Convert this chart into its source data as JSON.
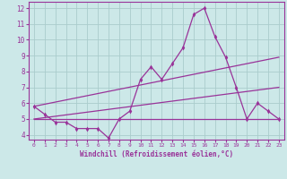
{
  "bg_color": "#cce8e8",
  "grid_color": "#aacccc",
  "line_color": "#993399",
  "xlabel": "Windchill (Refroidissement éolien,°C)",
  "xlim": [
    -0.5,
    23.5
  ],
  "ylim": [
    3.7,
    12.4
  ],
  "xticks": [
    0,
    1,
    2,
    3,
    4,
    5,
    6,
    7,
    8,
    9,
    10,
    11,
    12,
    13,
    14,
    15,
    16,
    17,
    18,
    19,
    20,
    21,
    22,
    23
  ],
  "yticks": [
    4,
    5,
    6,
    7,
    8,
    9,
    10,
    11,
    12
  ],
  "main_x": [
    0,
    1,
    2,
    3,
    4,
    5,
    6,
    7,
    8,
    9,
    10,
    11,
    12,
    13,
    14,
    15,
    16,
    17,
    18,
    19,
    20,
    21,
    22,
    23
  ],
  "main_y": [
    5.8,
    5.3,
    4.8,
    4.8,
    4.4,
    4.4,
    4.4,
    3.8,
    5.0,
    5.5,
    7.5,
    8.3,
    7.5,
    8.5,
    9.5,
    11.6,
    12.0,
    10.2,
    8.9,
    7.0,
    5.0,
    6.0,
    5.5,
    5.0
  ],
  "trend1_x": [
    0,
    23
  ],
  "trend1_y": [
    5.8,
    8.9
  ],
  "trend2_x": [
    0,
    23
  ],
  "trend2_y": [
    5.0,
    7.0
  ],
  "trend3_x": [
    0,
    23
  ],
  "trend3_y": [
    5.0,
    5.0
  ]
}
